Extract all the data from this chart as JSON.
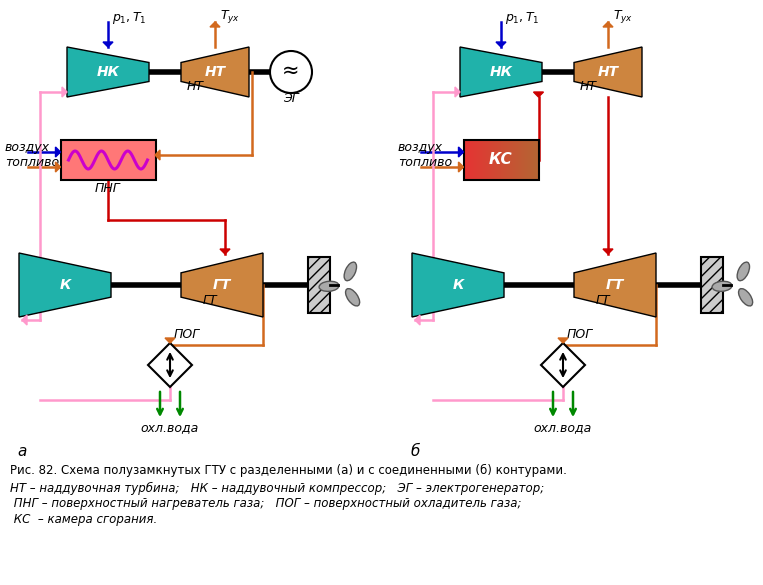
{
  "teal": "#20B2AA",
  "orange": "#D2691E",
  "red": "#CC0000",
  "blue": "#0000CC",
  "pink": "#FF99CC",
  "green": "#008800",
  "black": "#000000",
  "bg": "#FFFFFF",
  "caption": "Рис. 82. Схема полузамкнутых ГТУ с разделенными (а) и с соединенными (б) контурами.",
  "leg1": "НТ – наддувочная турбина;   НК – наддувочный компрессор;   ЭГ – электрогенератор;",
  "leg2": " ПНГ – поверхностный нагреватель газа;   ПОГ – поверхностный охладитель газа;",
  "leg3": " КС  – камера сгорания."
}
